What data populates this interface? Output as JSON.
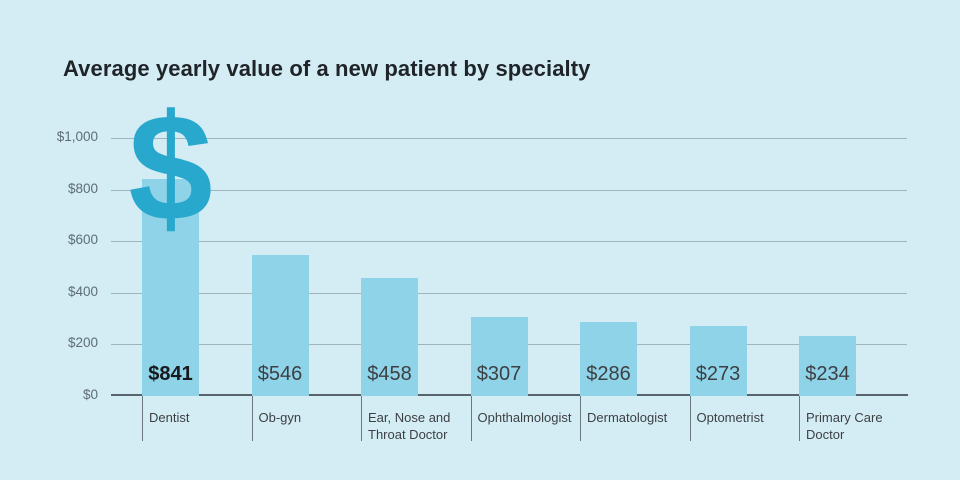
{
  "chart_data": {
    "type": "bar",
    "title": "Average yearly value of a new patient by specialty",
    "categories": [
      "Dentist",
      "Ob-gyn",
      "Ear, Nose and Throat Doctor",
      "Ophthalmologist",
      "Dermatologist",
      "Optometrist",
      "Primary Care Doctor"
    ],
    "values": [
      841,
      546,
      458,
      307,
      286,
      273,
      234
    ],
    "value_labels": [
      "$841",
      "$546",
      "$458",
      "$307",
      "$286",
      "$273",
      "$234"
    ],
    "highlighted_index": 0,
    "y_ticks": [
      "$1,000",
      "$800",
      "$600",
      "$400",
      "$200",
      "$0"
    ],
    "ylim": [
      0,
      1000
    ],
    "xlabel": "",
    "ylabel": "",
    "grid": "horizontal",
    "legend": "none",
    "annotation": {
      "symbol": "$",
      "meaning": "dollar-sign-icon",
      "position": "above first bar (Dentist)"
    }
  },
  "colors": {
    "background": "#d4edf5",
    "bar_fill": "#8fd3e8",
    "dollar_icon": "#29a8cd",
    "gridline": "#a2b4bb",
    "axis_line": "#57646b",
    "title_text": "#1f2428",
    "value_text": "#3c4043",
    "tick_text": "#5e6d75"
  }
}
